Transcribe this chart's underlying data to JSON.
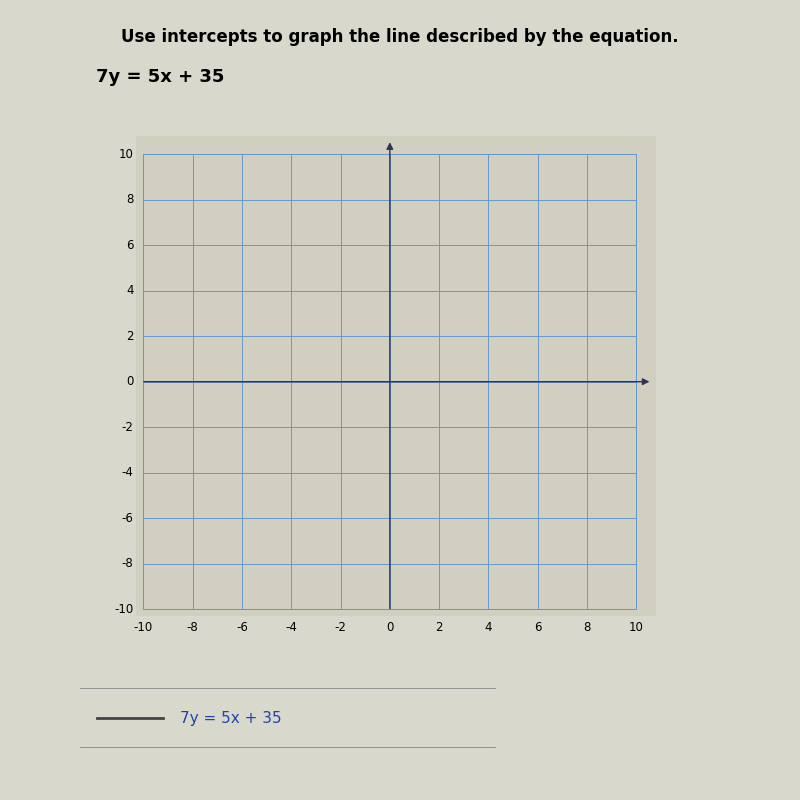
{
  "title": "Use intercepts to graph the line described by the equation.",
  "equation": "7y = 5x + 35",
  "xmin": -10,
  "xmax": 10,
  "ymin": -10,
  "ymax": 10,
  "tick_step": 2,
  "grid_color": "#6699cc",
  "axis_color": "#333355",
  "background_color": "#d8d8cc",
  "plot_bg_color": "#d0cfc0",
  "legend_label": "7y = 5x + 35",
  "title_fontsize": 12,
  "equation_fontsize": 13,
  "tick_fontsize": 8.5,
  "legend_fontsize": 11,
  "legend_line_color": "#444444",
  "text_color": "#000000",
  "blue_text_color": "#2244aa"
}
